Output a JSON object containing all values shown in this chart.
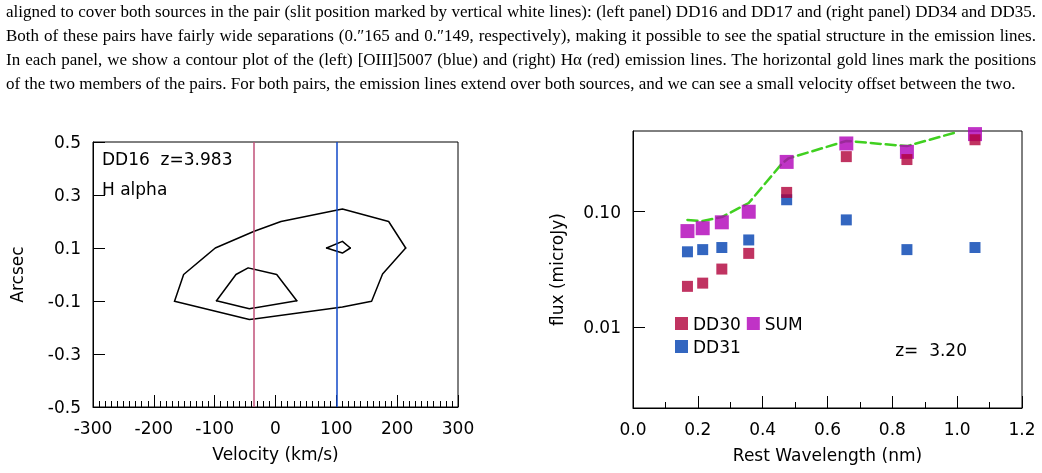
{
  "chart_data": [
    {
      "type": "other",
      "annotations": [
        "aligned to cover both sources in the pair (slit position marked by vertical white lines): (left panel) DD16 and DD17 and (right panel) DD34 and DD35. Both of these pairs have fairly wide separations (0.″165 and 0.″149, respectively), making it possible to see the spatial structure in the emission lines. In each panel, we show a contour plot of the (left) [OIII]5007 (blue) and (right) Hα (red) emission lines. The horizontal gold lines mark the positions of the two members of the pairs. For both pairs, the emission lines extend over both sources, and we can see a small velocity offset between the two."
      ]
    },
    {
      "type": "line",
      "xlabel": "Velocity (km/s)",
      "ylabel": "Arcsec",
      "annotations": [
        "DD16  z=3.983",
        "H alpha"
      ],
      "marker": "none",
      "line_style": "solid",
      "grid": false,
      "legend": false,
      "xlim": [
        -300,
        300
      ],
      "xticks": [
        -300,
        -200,
        -100,
        0,
        100,
        200,
        300
      ],
      "ylim": [
        -0.5,
        0.5
      ],
      "yticks": [
        -0.5,
        -0.3,
        -0.1,
        0.1,
        0.3,
        0.5
      ],
      "ref_lines": [
        {
          "axis": "x",
          "value": -35,
          "color": "#c05078"
        },
        {
          "axis": "x",
          "value": 100,
          "color": "#1048c8"
        }
      ],
      "series": [
        {
          "color": "#000000",
          "x": [
            -166,
            -151,
            -99,
            -35,
            9,
            110,
            186,
            214
          ],
          "values": [
            -0.101,
            0.0,
            0.1,
            0.163,
            0.2,
            0.247,
            0.2,
            0.1
          ]
        },
        {
          "color": "#000000",
          "x": [
            -166,
            -43,
            110,
            158,
            176,
            214
          ],
          "values": [
            -0.101,
            -0.17,
            -0.123,
            -0.101,
            0.002,
            0.1
          ]
        },
        {
          "color": "#000000",
          "x": [
            -97,
            -65,
            -45,
            2,
            35
          ],
          "values": [
            -0.099,
            0.0,
            0.025,
            0.0,
            -0.099
          ]
        },
        {
          "color": "#000000",
          "x": [
            -97,
            -43,
            35
          ],
          "values": [
            -0.099,
            -0.129,
            -0.099
          ]
        },
        {
          "color": "#000000",
          "x": [
            84,
            110,
            123
          ],
          "values": [
            0.1,
            0.125,
            0.1
          ]
        },
        {
          "color": "#000000",
          "x": [
            84,
            110,
            123
          ],
          "values": [
            0.1,
            0.081,
            0.1
          ]
        }
      ]
    },
    {
      "type": "scatter",
      "xlabel": "Rest Wavelength (nm)",
      "ylabel": "flux (microJy)",
      "annotations": [
        "z=  3.20"
      ],
      "marker": "square",
      "log": "y",
      "grid": false,
      "legend": "bottom left",
      "xlim": [
        0,
        1.2
      ],
      "xticks": [
        {
          "value": 0,
          "label": "0.0"
        },
        0.2,
        0.4,
        0.6,
        0.8,
        {
          "value": 1,
          "label": "1.0"
        },
        1.2
      ],
      "ylim": [
        0.002,
        0.5
      ],
      "yticks": [
        {
          "value": 0.01,
          "label": "0.01"
        },
        {
          "value": 0.1,
          "label": "0.10"
        }
      ],
      "x": [
        0.168,
        0.215,
        0.274,
        0.357,
        0.474,
        0.658,
        0.845,
        1.055
      ],
      "series": [
        {
          "name": "DD30",
          "color": "#b0003a",
          "values": [
            0.0226,
            0.0241,
            0.0319,
            0.0436,
            0.147,
            0.3,
            0.283,
            0.42
          ]
        },
        {
          "name": "SUM",
          "color": "#b000b8",
          "values": [
            0.068,
            0.072,
            0.081,
            0.1,
            0.27,
            0.39,
            0.33,
            0.47
          ]
        },
        {
          "name": "DD31",
          "color": "#0040b0",
          "values": [
            0.045,
            0.047,
            0.049,
            0.057,
            0.127,
            0.085,
            0.047,
            0.049
          ]
        },
        {
          "type": "line",
          "color": "#40d020",
          "line_style": "dashed",
          "marker": "none",
          "x": [
            0.168,
            0.215,
            0.274,
            0.357,
            0.459,
            0.48,
            0.658,
            0.845,
            1.0
          ],
          "values": [
            0.085,
            0.083,
            0.09,
            0.119,
            0.26,
            0.29,
            0.41,
            0.37,
            0.49
          ]
        }
      ]
    }
  ]
}
